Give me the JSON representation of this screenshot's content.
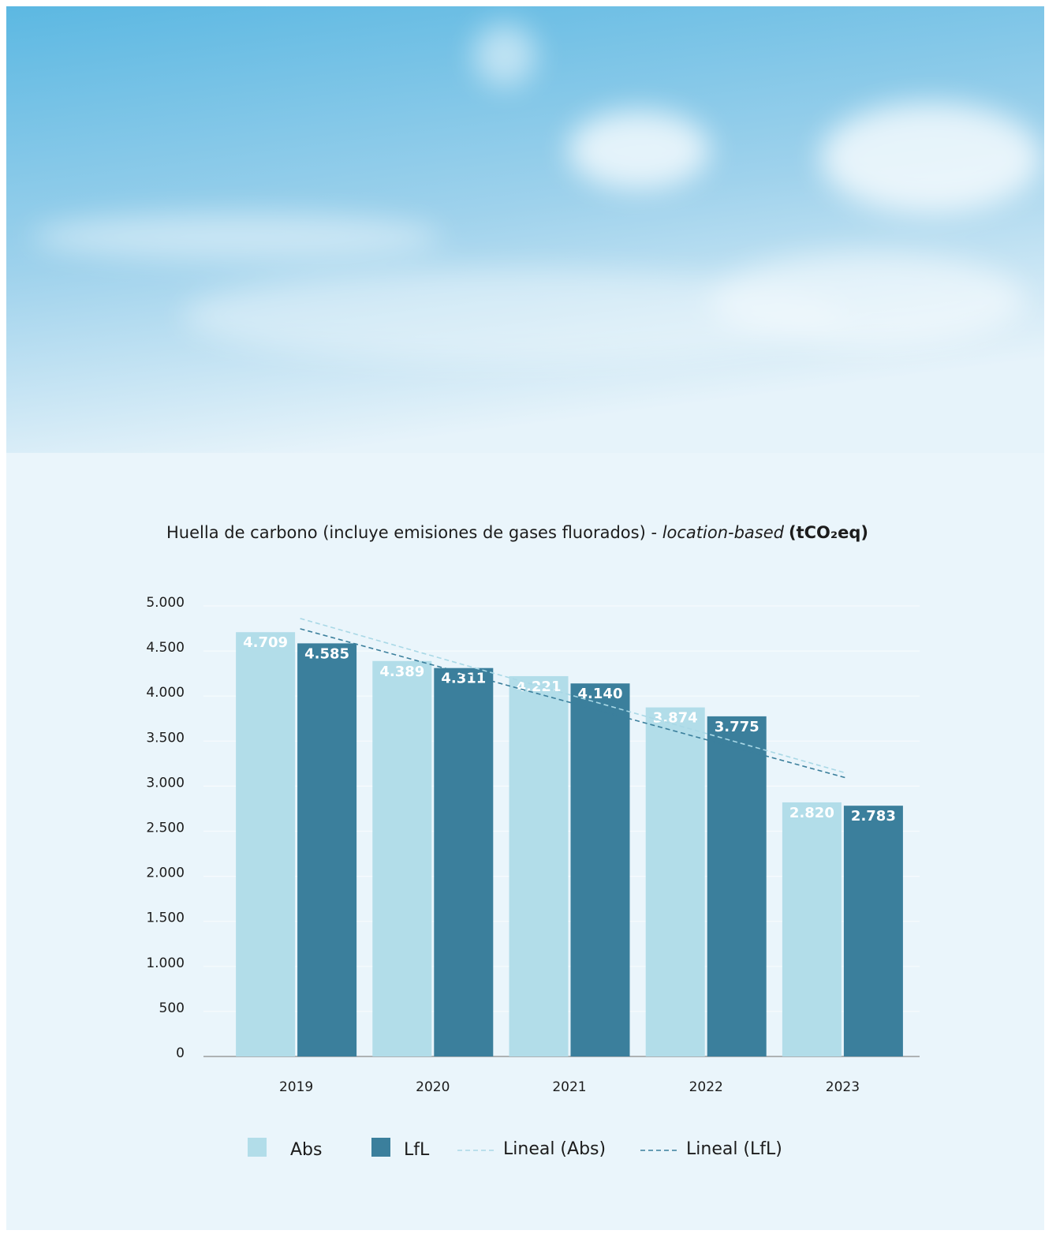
{
  "chart_data": {
    "type": "bar",
    "title": "Huella de carbono (incluye emisiones de gases fluorados) - ",
    "title_emphasis": "location-based",
    "title_unit": "(tCO₂eq)",
    "categories": [
      "2019",
      "2020",
      "2021",
      "2022",
      "2023"
    ],
    "series": [
      {
        "name": "Abs",
        "color": "#b2dde9",
        "values": [
          4709,
          4389,
          4221,
          3874,
          2820
        ],
        "value_labels": [
          "4.709",
          "4.389",
          "4.221",
          "3.874",
          "2.820"
        ],
        "trendline": {
          "name": "Lineal (Abs)",
          "color": "#a9d8e6"
        }
      },
      {
        "name": "LfL",
        "color": "#3b7f9c",
        "values": [
          4585,
          4311,
          4140,
          3775,
          2783
        ],
        "value_labels": [
          "4.585",
          "4.311",
          "4.140",
          "3.775",
          "2.783"
        ],
        "trendline": {
          "name": "Lineal (LfL)",
          "color": "#3b7f9c"
        }
      }
    ],
    "ylim": [
      0,
      5000
    ],
    "yticks": [
      0,
      {
        "value": 500,
        "label": "500"
      },
      {
        "value": 1000,
        "label": "1.000"
      },
      {
        "value": 1500,
        "label": "1.500"
      },
      {
        "value": 2000,
        "label": "2.000"
      },
      {
        "value": 2500,
        "label": "2.500"
      },
      {
        "value": 3000,
        "label": "3.000"
      },
      {
        "value": 3500,
        "label": "3.500"
      },
      {
        "value": 4000,
        "label": "4.000"
      },
      {
        "value": 4500,
        "label": "4.500"
      },
      {
        "value": 5000,
        "label": "5.000"
      }
    ],
    "grid": true
  }
}
